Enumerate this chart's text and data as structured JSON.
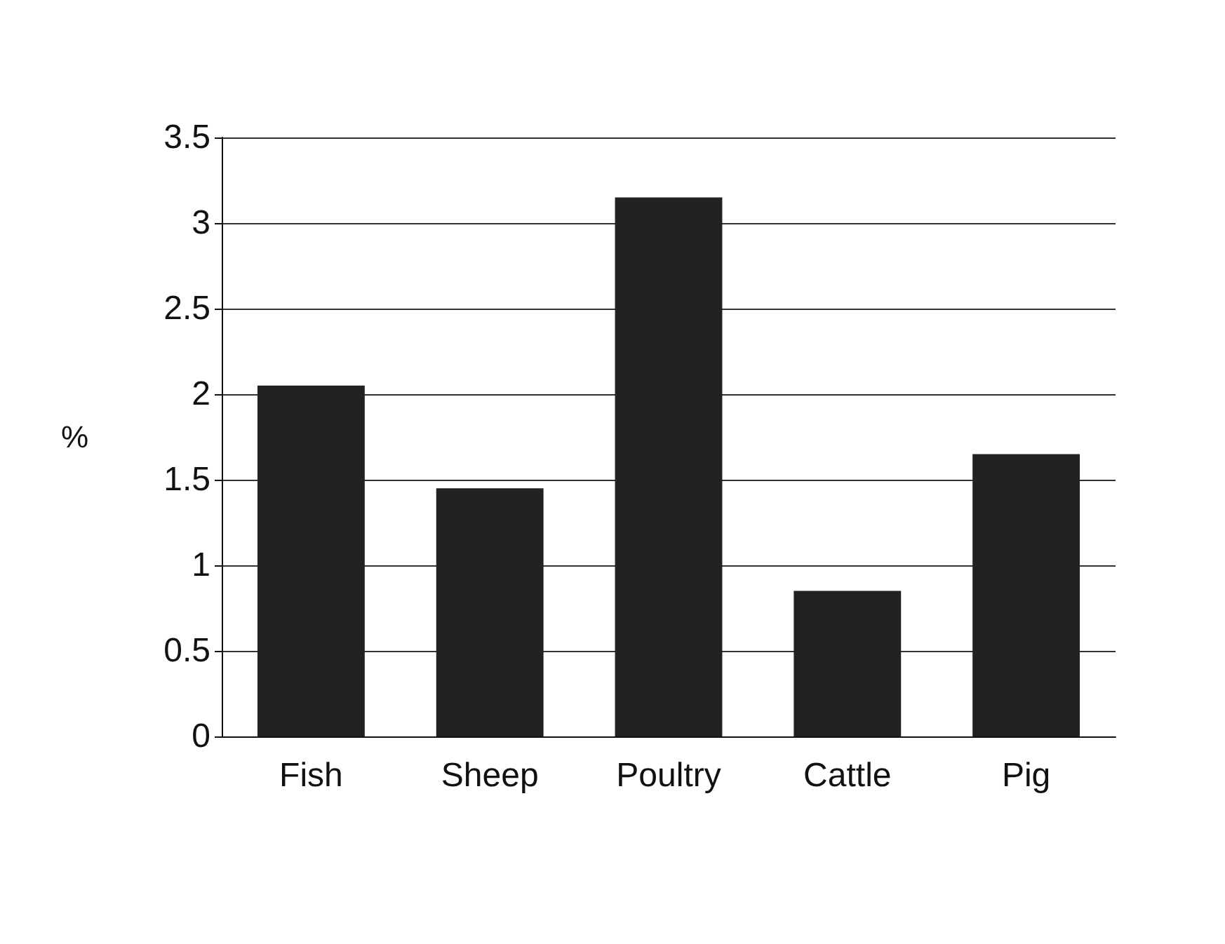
{
  "chart_data": {
    "type": "bar",
    "ylabel": "%",
    "categories": [
      "Fish",
      "Sheep",
      "Poultry",
      "Cattle",
      "Pig"
    ],
    "values": [
      2.05,
      1.45,
      3.15,
      0.85,
      1.65
    ],
    "color": "#222222",
    "ylim": [
      0,
      3.5
    ],
    "yticks": [
      0,
      0.5,
      1,
      1.5,
      2,
      2.5,
      3,
      3.5
    ],
    "grid": "y"
  }
}
